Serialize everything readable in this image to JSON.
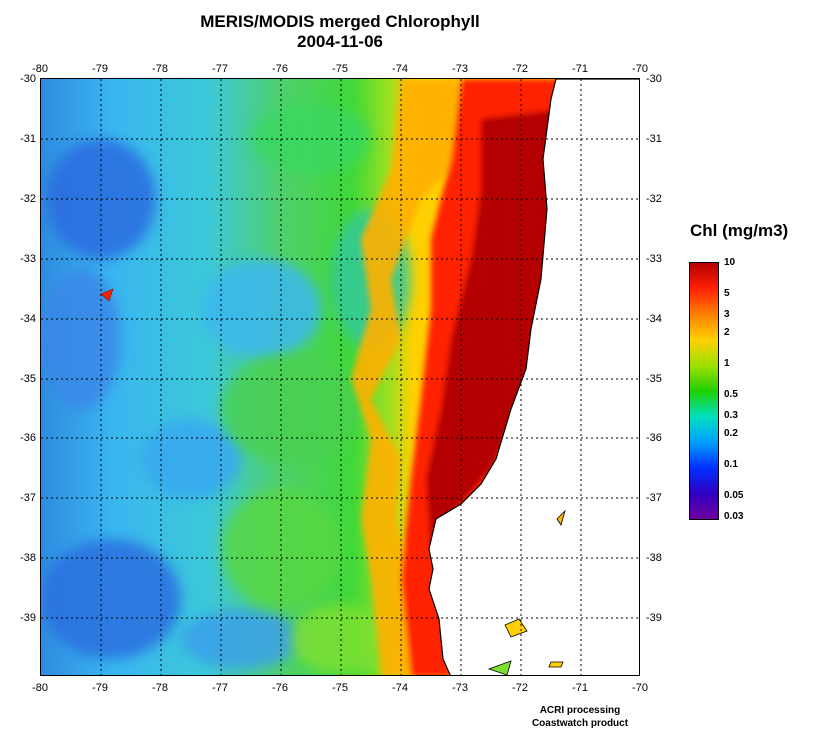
{
  "title": {
    "line1": "MERIS/MODIS merged Chlorophyll",
    "line2": "2004-11-06"
  },
  "map": {
    "lon_ticks": [
      "-80",
      "-79",
      "-78",
      "-77",
      "-76",
      "-75",
      "-74",
      "-73",
      "-72",
      "-71",
      "-70"
    ],
    "lat_ticks": [
      "-30",
      "-31",
      "-32",
      "-33",
      "-34",
      "-35",
      "-36",
      "-37",
      "-38",
      "-39"
    ],
    "lon_range": [
      -80,
      -70
    ],
    "lat_range": [
      -30,
      -40
    ],
    "grid": "dotted",
    "land_color": "#ffffff",
    "coastline_color": "#000000"
  },
  "colorbar": {
    "title": "Chl (mg/m3)",
    "labels": [
      "10",
      "5",
      "3",
      "2",
      "1",
      "0.5",
      "0.3",
      "0.2",
      "0.1",
      "0.05",
      "0.03"
    ],
    "colors": [
      "#b40000",
      "#ff2000",
      "#ff8000",
      "#ffd000",
      "#a0e000",
      "#20d000",
      "#00e0c0",
      "#00a0ff",
      "#0030ff",
      "#3000c0",
      "#7000a0"
    ]
  },
  "credits": {
    "line1": "ACRI processing",
    "line2": "Coastwatch product"
  }
}
